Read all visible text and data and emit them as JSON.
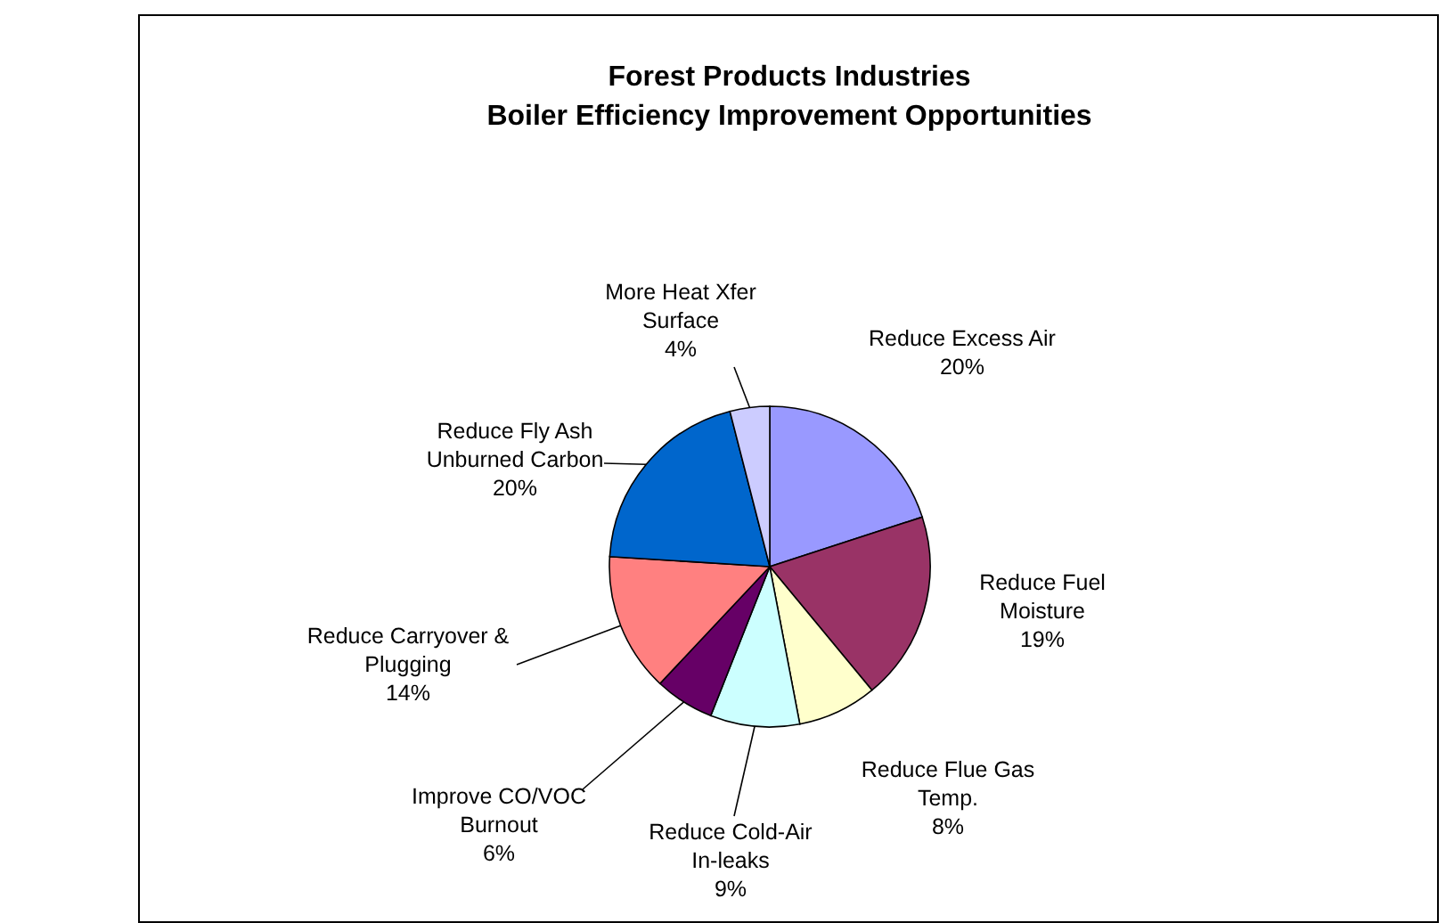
{
  "chart_data": {
    "type": "pie",
    "title": "Forest Products Industries\nBoiler Efficiency Improvement Opportunities",
    "categories": [
      "Reduce Excess Air",
      "Reduce Fuel Moisture",
      "Reduce Flue Gas Temp.",
      "Reduce Cold-Air In-leaks",
      "Improve CO/VOC Burnout",
      "Reduce Carryover & Plugging",
      "Reduce Fly Ash Unburned Carbon",
      "More Heat Xfer Surface"
    ],
    "values": [
      20,
      19,
      8,
      9,
      6,
      14,
      20,
      4
    ],
    "value_labels": [
      "20%",
      "19%",
      "8%",
      "9%",
      "6%",
      "14%",
      "20%",
      "4%"
    ],
    "colors": [
      "#9999ff",
      "#993366",
      "#ffffcc",
      "#ccffff",
      "#660066",
      "#ff8080",
      "#0066cc",
      "#ccccff"
    ]
  }
}
